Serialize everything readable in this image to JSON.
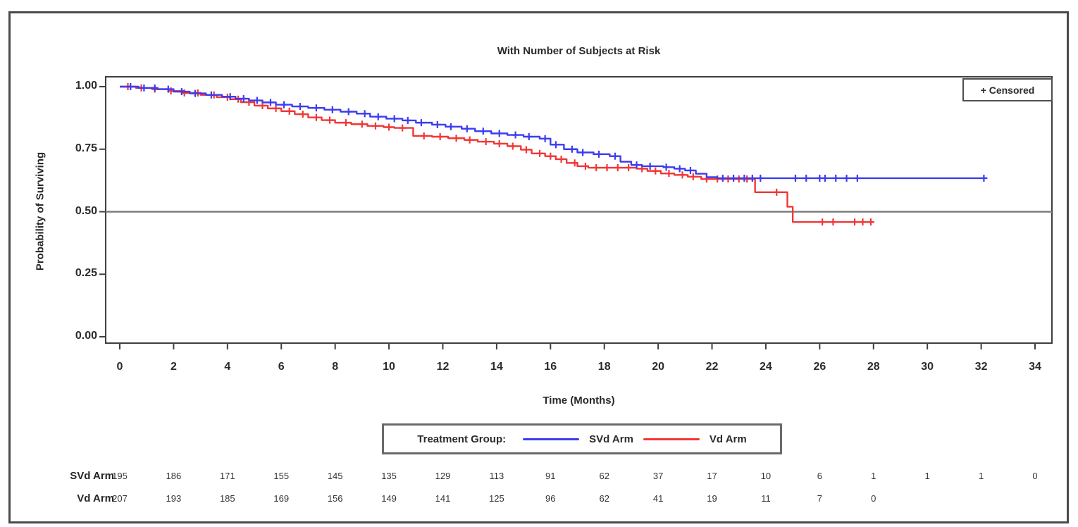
{
  "figure": {
    "censored_box_label": "+ Censored",
    "legend_title": "Treatment Group:",
    "colors": {
      "svd_arm": "#3c3cf0",
      "vd_arm": "#f23636",
      "reference_line": "#7d7d7d",
      "axis": "#3f3f3f",
      "text": "#2b2b2b",
      "frame": "#4a4a4a"
    }
  },
  "chart_data": {
    "type": "line",
    "subtype": "kaplan-meier-step",
    "title": "With Number of Subjects at Risk",
    "xlabel": "Time (Months)",
    "ylabel": "Probability of Surviving",
    "xlim": [
      0,
      34
    ],
    "ylim": [
      0,
      1
    ],
    "x_ticks": [
      0,
      2,
      4,
      6,
      8,
      10,
      12,
      14,
      16,
      18,
      20,
      22,
      24,
      26,
      28,
      30,
      32,
      34
    ],
    "y_ticks": [
      0,
      0.25,
      0.5,
      0.75,
      1
    ],
    "y_tick_labels": [
      "0.00",
      "0.25",
      "0.50",
      "0.75",
      "1.00"
    ],
    "reference_line_y": 0.5,
    "grid": false,
    "legend_position": "bottom",
    "censored_marker": "+",
    "series": [
      {
        "name": "SVd Arm",
        "color": "#3c3cf0",
        "steps": [
          [
            0,
            1.0
          ],
          [
            0.7,
            0.995
          ],
          [
            1.4,
            0.99
          ],
          [
            2.0,
            0.98
          ],
          [
            2.6,
            0.973
          ],
          [
            3.2,
            0.967
          ],
          [
            3.8,
            0.96
          ],
          [
            4.3,
            0.952
          ],
          [
            4.8,
            0.945
          ],
          [
            5.3,
            0.937
          ],
          [
            5.8,
            0.928
          ],
          [
            6.4,
            0.921
          ],
          [
            7.0,
            0.915
          ],
          [
            7.6,
            0.908
          ],
          [
            8.2,
            0.9
          ],
          [
            8.8,
            0.892
          ],
          [
            9.3,
            0.88
          ],
          [
            9.9,
            0.872
          ],
          [
            10.5,
            0.865
          ],
          [
            11.0,
            0.856
          ],
          [
            11.6,
            0.848
          ],
          [
            12.1,
            0.84
          ],
          [
            12.7,
            0.832
          ],
          [
            13.2,
            0.822
          ],
          [
            13.8,
            0.813
          ],
          [
            14.4,
            0.807
          ],
          [
            15.0,
            0.8
          ],
          [
            15.6,
            0.792
          ],
          [
            16.0,
            0.768
          ],
          [
            16.5,
            0.75
          ],
          [
            17.0,
            0.737
          ],
          [
            17.6,
            0.73
          ],
          [
            18.2,
            0.722
          ],
          [
            18.6,
            0.7
          ],
          [
            19.0,
            0.687
          ],
          [
            19.4,
            0.682
          ],
          [
            20.2,
            0.678
          ],
          [
            20.6,
            0.672
          ],
          [
            21.0,
            0.665
          ],
          [
            21.4,
            0.652
          ],
          [
            21.8,
            0.638
          ],
          [
            22.2,
            0.634
          ],
          [
            32.2,
            0.634
          ]
        ],
        "censor_times": [
          0.4,
          0.9,
          1.3,
          1.8,
          2.3,
          2.8,
          3.4,
          4.1,
          4.6,
          5.1,
          5.6,
          6.1,
          6.7,
          7.3,
          7.9,
          8.5,
          9.1,
          9.6,
          10.2,
          10.7,
          11.2,
          11.8,
          12.3,
          12.9,
          13.5,
          14.1,
          14.7,
          15.2,
          15.8,
          16.2,
          16.8,
          17.2,
          17.8,
          18.4,
          19.2,
          19.7,
          20.3,
          20.8,
          21.2,
          22.4,
          22.8,
          23.2,
          23.5,
          23.8,
          25.1,
          25.5,
          26.0,
          26.2,
          26.6,
          27.0,
          27.4,
          32.1
        ]
      },
      {
        "name": "Vd Arm",
        "color": "#f23636",
        "steps": [
          [
            0,
            1.0
          ],
          [
            0.6,
            0.995
          ],
          [
            1.2,
            0.99
          ],
          [
            1.8,
            0.983
          ],
          [
            2.4,
            0.975
          ],
          [
            3.0,
            0.967
          ],
          [
            3.6,
            0.958
          ],
          [
            4.1,
            0.95
          ],
          [
            4.5,
            0.938
          ],
          [
            5.0,
            0.924
          ],
          [
            5.5,
            0.913
          ],
          [
            6.0,
            0.902
          ],
          [
            6.5,
            0.89
          ],
          [
            7.0,
            0.877
          ],
          [
            7.5,
            0.866
          ],
          [
            8.0,
            0.856
          ],
          [
            8.6,
            0.85
          ],
          [
            9.2,
            0.843
          ],
          [
            9.8,
            0.838
          ],
          [
            10.2,
            0.835
          ],
          [
            10.9,
            0.803
          ],
          [
            11.6,
            0.8
          ],
          [
            12.2,
            0.794
          ],
          [
            12.8,
            0.787
          ],
          [
            13.3,
            0.78
          ],
          [
            13.9,
            0.772
          ],
          [
            14.4,
            0.762
          ],
          [
            14.9,
            0.748
          ],
          [
            15.3,
            0.733
          ],
          [
            15.8,
            0.722
          ],
          [
            16.2,
            0.71
          ],
          [
            16.6,
            0.695
          ],
          [
            17.0,
            0.682
          ],
          [
            17.4,
            0.676
          ],
          [
            19.2,
            0.672
          ],
          [
            19.6,
            0.663
          ],
          [
            20.1,
            0.653
          ],
          [
            20.6,
            0.647
          ],
          [
            21.1,
            0.64
          ],
          [
            21.6,
            0.631
          ],
          [
            23.6,
            0.578
          ],
          [
            24.8,
            0.52
          ],
          [
            25.0,
            0.459
          ],
          [
            28.0,
            0.459
          ]
        ],
        "censor_times": [
          0.3,
          0.8,
          1.3,
          1.9,
          2.4,
          2.9,
          3.5,
          4.0,
          4.4,
          4.8,
          5.3,
          5.8,
          6.3,
          6.8,
          7.3,
          7.8,
          8.4,
          9.0,
          9.5,
          10.0,
          10.5,
          11.3,
          11.9,
          12.5,
          13.0,
          13.6,
          14.1,
          14.6,
          15.1,
          15.6,
          16.0,
          16.4,
          16.9,
          17.3,
          17.7,
          18.1,
          18.5,
          18.9,
          19.4,
          19.9,
          20.4,
          20.9,
          21.3,
          21.8,
          22.2,
          22.6,
          23.0,
          23.3,
          24.4,
          26.1,
          26.5,
          27.3,
          27.6,
          27.9
        ]
      }
    ],
    "at_risk_table": {
      "rows": [
        {
          "label": "SVd Arm",
          "times": [
            0,
            2,
            4,
            6,
            8,
            10,
            12,
            14,
            16,
            18,
            20,
            22,
            24,
            26,
            28,
            30,
            32,
            34
          ],
          "values": [
            195,
            186,
            171,
            155,
            145,
            135,
            129,
            113,
            91,
            62,
            37,
            17,
            10,
            6,
            1,
            1,
            1,
            0
          ]
        },
        {
          "label": "Vd Arm",
          "times": [
            0,
            2,
            4,
            6,
            8,
            10,
            12,
            14,
            16,
            18,
            20,
            22,
            24,
            26,
            28
          ],
          "values": [
            207,
            193,
            185,
            169,
            156,
            149,
            141,
            125,
            96,
            62,
            41,
            19,
            11,
            7,
            0
          ]
        }
      ]
    }
  }
}
